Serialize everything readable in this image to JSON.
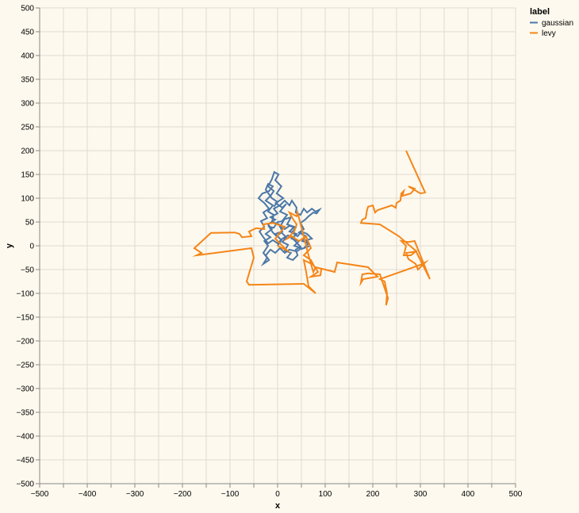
{
  "chart_data": {
    "type": "line",
    "xlabel": "x",
    "ylabel": "y",
    "xlim": [
      -500,
      500
    ],
    "ylim": [
      -500,
      500
    ],
    "xticks": [
      -500,
      -400,
      -300,
      -200,
      -100,
      0,
      100,
      200,
      300,
      400,
      500
    ],
    "yticks": [
      -500,
      -450,
      -400,
      -350,
      -300,
      -250,
      -200,
      -150,
      -100,
      -50,
      0,
      50,
      100,
      150,
      200,
      250,
      300,
      350,
      400,
      450,
      500
    ],
    "grid": true,
    "legend": {
      "title": "label",
      "position": "top-right"
    },
    "colors": {
      "background": "#fdf9ee",
      "grid": "#dedbd2",
      "axis": "#888888"
    },
    "series": [
      {
        "name": "gaussian",
        "color": "#4c78a8",
        "points": [
          [
            0,
            0
          ],
          [
            8,
            12
          ],
          [
            -5,
            25
          ],
          [
            10,
            30
          ],
          [
            3,
            45
          ],
          [
            -12,
            50
          ],
          [
            -8,
            65
          ],
          [
            -20,
            72
          ],
          [
            -10,
            85
          ],
          [
            -25,
            95
          ],
          [
            -15,
            105
          ],
          [
            -8,
            115
          ],
          [
            -20,
            125
          ],
          [
            -12,
            140
          ],
          [
            -7,
            155
          ],
          [
            2,
            150
          ],
          [
            -5,
            138
          ],
          [
            8,
            125
          ],
          [
            -2,
            110
          ],
          [
            12,
            100
          ],
          [
            -4,
            90
          ],
          [
            10,
            80
          ],
          [
            18,
            88
          ],
          [
            5,
            72
          ],
          [
            20,
            65
          ],
          [
            12,
            55
          ],
          [
            28,
            60
          ],
          [
            20,
            45
          ],
          [
            35,
            40
          ],
          [
            25,
            30
          ],
          [
            40,
            25
          ],
          [
            30,
            15
          ],
          [
            45,
            10
          ],
          [
            35,
            0
          ],
          [
            50,
            -5
          ],
          [
            40,
            -12
          ],
          [
            25,
            -8
          ],
          [
            15,
            -15
          ],
          [
            5,
            -5
          ],
          [
            -5,
            -15
          ],
          [
            -15,
            -8
          ],
          [
            -25,
            -20
          ],
          [
            -18,
            -30
          ],
          [
            -30,
            -38
          ],
          [
            -22,
            -25
          ],
          [
            -30,
            -15
          ],
          [
            -20,
            0
          ],
          [
            -28,
            10
          ],
          [
            -15,
            18
          ],
          [
            -25,
            25
          ],
          [
            -12,
            35
          ],
          [
            -20,
            45
          ],
          [
            -5,
            55
          ],
          [
            -15,
            60
          ],
          [
            0,
            68
          ],
          [
            -8,
            78
          ],
          [
            5,
            85
          ],
          [
            15,
            95
          ],
          [
            25,
            85
          ],
          [
            30,
            95
          ],
          [
            40,
            80
          ],
          [
            38,
            70
          ],
          [
            48,
            65
          ],
          [
            55,
            78
          ],
          [
            62,
            70
          ],
          [
            72,
            78
          ],
          [
            80,
            72
          ],
          [
            88,
            76
          ],
          [
            82,
            68
          ],
          [
            75,
            70
          ],
          [
            65,
            62
          ],
          [
            58,
            55
          ],
          [
            48,
            48
          ],
          [
            55,
            35
          ],
          [
            45,
            28
          ],
          [
            60,
            20
          ],
          [
            52,
            10
          ],
          [
            65,
            5
          ],
          [
            55,
            -5
          ],
          [
            68,
            0
          ],
          [
            60,
            12
          ],
          [
            72,
            15
          ],
          [
            62,
            25
          ],
          [
            50,
            30
          ],
          [
            42,
            20
          ],
          [
            30,
            28
          ],
          [
            38,
            38
          ],
          [
            25,
            42
          ],
          [
            15,
            35
          ],
          [
            5,
            40
          ],
          [
            12,
            52
          ],
          [
            0,
            50
          ],
          [
            -8,
            38
          ],
          [
            -18,
            40
          ],
          [
            -10,
            28
          ],
          [
            -2,
            20
          ],
          [
            8,
            28
          ],
          [
            18,
            18
          ],
          [
            10,
            8
          ],
          [
            22,
            2
          ],
          [
            15,
            -10
          ],
          [
            28,
            -15
          ],
          [
            20,
            -25
          ],
          [
            32,
            -30
          ],
          [
            42,
            -20
          ],
          [
            38,
            -8
          ],
          [
            48,
            -2
          ],
          [
            35,
            12
          ],
          [
            22,
            22
          ],
          [
            10,
            15
          ],
          [
            0,
            5
          ],
          [
            -10,
            12
          ],
          [
            -20,
            5
          ],
          [
            -30,
            18
          ],
          [
            -38,
            30
          ],
          [
            -28,
            40
          ],
          [
            -35,
            52
          ],
          [
            -22,
            58
          ],
          [
            -30,
            70
          ],
          [
            -18,
            78
          ],
          [
            -28,
            90
          ],
          [
            -40,
            100
          ],
          [
            -32,
            110
          ],
          [
            -18,
            115
          ],
          [
            -10,
            125
          ],
          [
            -20,
            130
          ],
          [
            -25,
            118
          ],
          [
            -12,
            100
          ],
          [
            0,
            92
          ],
          [
            -8,
            82
          ]
        ]
      },
      {
        "name": "levy",
        "color": "#f58518",
        "points": [
          [
            0,
            0
          ],
          [
            20,
            -10
          ],
          [
            -5,
            15
          ],
          [
            15,
            40
          ],
          [
            -10,
            48
          ],
          [
            -30,
            45
          ],
          [
            -28,
            35
          ],
          [
            -45,
            37
          ],
          [
            -60,
            30
          ],
          [
            -55,
            20
          ],
          [
            -75,
            18
          ],
          [
            -80,
            25
          ],
          [
            -90,
            28
          ],
          [
            -140,
            27
          ],
          [
            -175,
            -5
          ],
          [
            -160,
            -15
          ],
          [
            -170,
            -20
          ],
          [
            -55,
            -5
          ],
          [
            -50,
            -25
          ],
          [
            -65,
            -75
          ],
          [
            -60,
            -82
          ],
          [
            55,
            -80
          ],
          [
            80,
            -100
          ],
          [
            65,
            -85
          ],
          [
            60,
            -55
          ],
          [
            55,
            -30
          ],
          [
            75,
            -40
          ],
          [
            85,
            -55
          ],
          [
            70,
            -65
          ],
          [
            90,
            -62
          ],
          [
            92,
            -48
          ],
          [
            78,
            -45
          ],
          [
            70,
            -30
          ],
          [
            55,
            -20
          ],
          [
            70,
            -5
          ],
          [
            60,
            20
          ],
          [
            45,
            10
          ],
          [
            30,
            20
          ],
          [
            20,
            15
          ],
          [
            35,
            30
          ],
          [
            40,
            45
          ],
          [
            30,
            60
          ],
          [
            25,
            70
          ],
          [
            40,
            62
          ],
          [
            42,
            70
          ],
          [
            65,
            -20
          ],
          [
            75,
            -55
          ],
          [
            80,
            -45
          ],
          [
            100,
            -50
          ],
          [
            120,
            -55
          ],
          [
            125,
            -35
          ],
          [
            190,
            -45
          ],
          [
            210,
            -65
          ],
          [
            180,
            -70
          ],
          [
            175,
            -78
          ],
          [
            178,
            -60
          ],
          [
            190,
            -58
          ],
          [
            215,
            -60
          ],
          [
            232,
            -110
          ],
          [
            228,
            -125
          ],
          [
            230,
            -100
          ],
          [
            225,
            -75
          ],
          [
            215,
            -70
          ],
          [
            300,
            -40
          ],
          [
            310,
            -35
          ],
          [
            295,
            -50
          ],
          [
            290,
            -38
          ],
          [
            275,
            -28
          ],
          [
            270,
            -15
          ],
          [
            290,
            -12
          ],
          [
            280,
            -20
          ],
          [
            265,
            -20
          ],
          [
            270,
            0
          ],
          [
            260,
            10
          ],
          [
            275,
            8
          ],
          [
            288,
            10
          ],
          [
            320,
            -70
          ],
          [
            290,
            -10
          ],
          [
            272,
            5
          ],
          [
            255,
            20
          ],
          [
            215,
            45
          ],
          [
            175,
            48
          ],
          [
            178,
            55
          ],
          [
            185,
            58
          ],
          [
            188,
            75
          ],
          [
            190,
            82
          ],
          [
            200,
            85
          ],
          [
            205,
            70
          ],
          [
            210,
            75
          ],
          [
            240,
            85
          ],
          [
            248,
            80
          ],
          [
            250,
            90
          ],
          [
            258,
            95
          ],
          [
            260,
            110
          ],
          [
            265,
            115
          ],
          [
            262,
            105
          ],
          [
            280,
            110
          ],
          [
            288,
            120
          ],
          [
            275,
            125
          ],
          [
            300,
            110
          ],
          [
            310,
            112
          ],
          [
            270,
            200
          ]
        ]
      }
    ]
  }
}
